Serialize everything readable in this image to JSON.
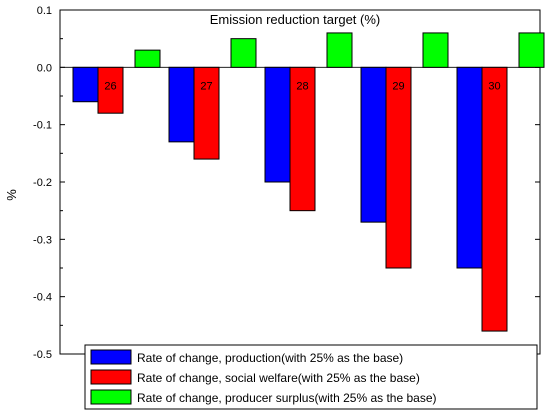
{
  "chart_data": {
    "type": "bar",
    "title": "Emission reduction target (%)",
    "xlabel": "",
    "ylabel": "%",
    "ylim": [
      -0.5,
      0.1
    ],
    "yticks": [
      "0.1",
      "0.0",
      "-0.1",
      "-0.2",
      "-0.3",
      "-0.4",
      "-0.5"
    ],
    "categories": [
      "26",
      "27",
      "28",
      "29",
      "30"
    ],
    "grid": false,
    "legend_position": "bottom-right",
    "series": [
      {
        "name": "Rate of change, production(with 25% as the base)",
        "color": "#0000ff",
        "values": [
          -0.06,
          -0.13,
          -0.2,
          -0.27,
          -0.35
        ]
      },
      {
        "name": "Rate of change, social welfare(with 25% as the base)",
        "color": "#ff0000",
        "values": [
          -0.08,
          -0.16,
          -0.25,
          -0.35,
          -0.46
        ]
      },
      {
        "name": "Rate of change, producer surplus(with 25% as the base)",
        "color": "#00ff00",
        "values": [
          0.03,
          0.05,
          0.06,
          0.06,
          0.06
        ]
      }
    ]
  }
}
